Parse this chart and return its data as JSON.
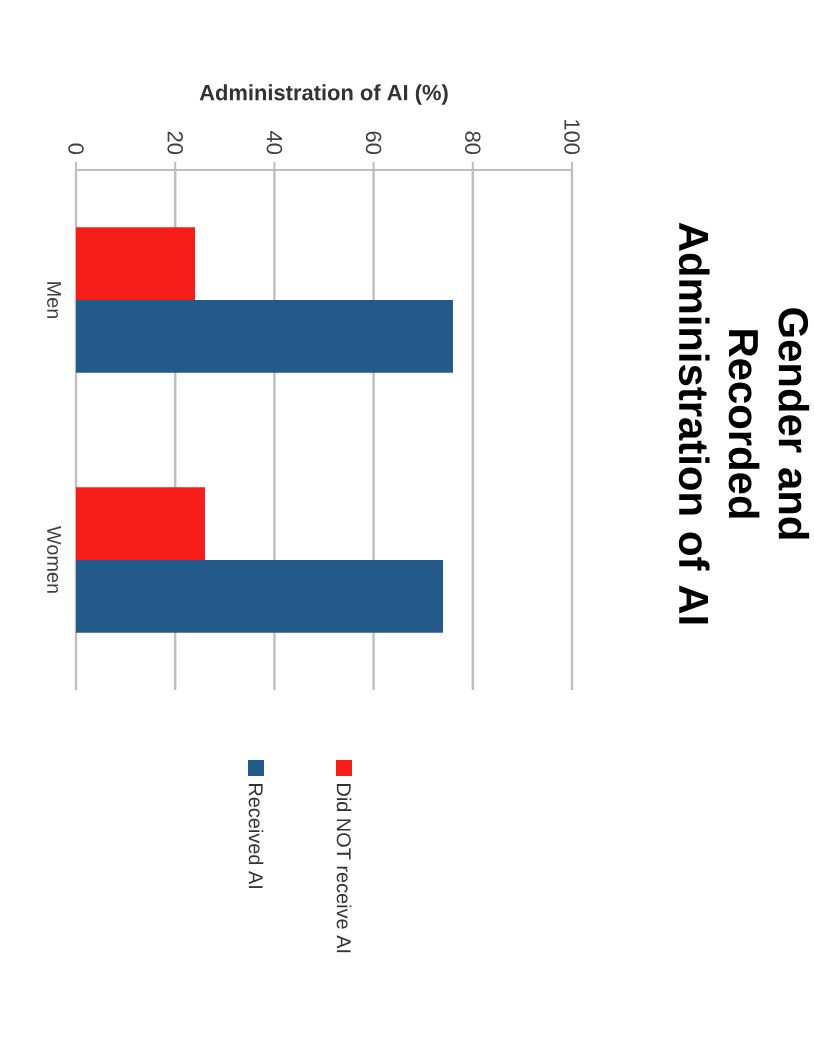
{
  "chart_data": {
    "type": "bar",
    "orientation": "horizontal",
    "title": "Gender and Recorded Administration of AI",
    "xlabel": "Administration of AI (%)",
    "categories": [
      "Men",
      "Women"
    ],
    "series": [
      {
        "name": "Did NOT receive AI",
        "color": "#f71e1a",
        "values": [
          24,
          26
        ]
      },
      {
        "name": "Received AI",
        "color": "#24598c",
        "values": [
          76,
          74
        ]
      }
    ],
    "xlim": [
      0,
      100
    ],
    "xticks": [
      0,
      20,
      40,
      60,
      80,
      100
    ],
    "grid": "x",
    "legend": "bottom"
  }
}
